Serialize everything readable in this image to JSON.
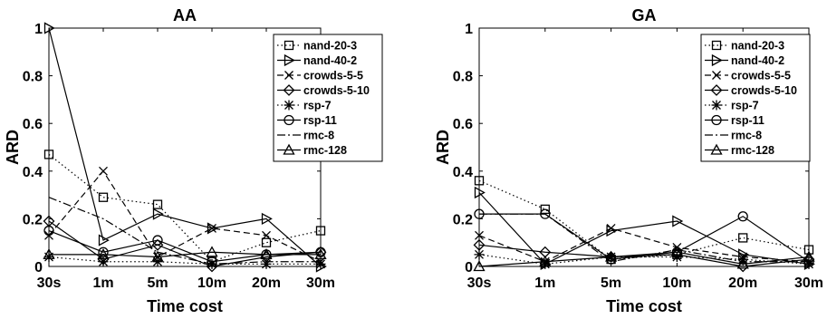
{
  "chart_data": [
    {
      "type": "line",
      "title": "AA",
      "xlabel": "Time cost",
      "ylabel": "ARD",
      "categories": [
        "30s",
        "1m",
        "5m",
        "10m",
        "20m",
        "30m"
      ],
      "ylim": [
        0,
        1
      ],
      "yticks": [
        "0",
        "0.2",
        "0.4",
        "0.6",
        "0.8",
        "1"
      ],
      "legend_position": "top-right",
      "series": [
        {
          "name": "nand-20-3",
          "values": [
            0.47,
            0.29,
            0.26,
            0.02,
            0.1,
            0.15
          ],
          "dash": "dotted",
          "marker": "square"
        },
        {
          "name": "nand-40-2",
          "values": [
            1.0,
            0.11,
            0.22,
            0.16,
            0.2,
            0.0
          ],
          "dash": "solid",
          "marker": "triangle-right"
        },
        {
          "name": "crowds-5-5",
          "values": [
            0.13,
            0.4,
            0.04,
            0.16,
            0.13,
            0.02
          ],
          "dash": "dashed",
          "marker": "x"
        },
        {
          "name": "crowds-5-10",
          "values": [
            0.19,
            0.03,
            0.09,
            0.0,
            0.04,
            0.06
          ],
          "dash": "solid",
          "marker": "diamond"
        },
        {
          "name": "rsp-7",
          "values": [
            0.04,
            0.02,
            0.02,
            0.01,
            0.01,
            0.01
          ],
          "dash": "dotted",
          "marker": "asterisk"
        },
        {
          "name": "rsp-11",
          "values": [
            0.15,
            0.06,
            0.11,
            0.02,
            0.05,
            0.06
          ],
          "dash": "solid",
          "marker": "circle"
        },
        {
          "name": "rmc-8",
          "values": [
            0.29,
            0.2,
            0.06,
            0.01,
            0.02,
            0.02
          ],
          "dash": "dashdot",
          "marker": "none"
        },
        {
          "name": "rmc-128",
          "values": [
            0.05,
            0.05,
            0.04,
            0.06,
            0.05,
            0.05
          ],
          "dash": "solid",
          "marker": "triangle-up"
        }
      ]
    },
    {
      "type": "line",
      "title": "GA",
      "xlabel": "Time cost",
      "ylabel": "ARD",
      "categories": [
        "30s",
        "1m",
        "5m",
        "10m",
        "20m",
        "30m"
      ],
      "ylim": [
        0,
        1
      ],
      "yticks": [
        "0",
        "0.2",
        "0.4",
        "0.6",
        "0.8",
        "1"
      ],
      "legend_position": "top-right",
      "series": [
        {
          "name": "nand-20-3",
          "values": [
            0.36,
            0.24,
            0.03,
            0.05,
            0.12,
            0.07
          ],
          "dash": "dotted",
          "marker": "square"
        },
        {
          "name": "nand-40-2",
          "values": [
            0.31,
            0.01,
            0.15,
            0.19,
            0.05,
            0.01
          ],
          "dash": "solid",
          "marker": "triangle-right"
        },
        {
          "name": "crowds-5-5",
          "values": [
            0.13,
            0.02,
            0.16,
            0.08,
            0.04,
            0.02
          ],
          "dash": "dashed",
          "marker": "x"
        },
        {
          "name": "crowds-5-10",
          "values": [
            0.09,
            0.06,
            0.04,
            0.05,
            0.0,
            0.03
          ],
          "dash": "solid",
          "marker": "diamond"
        },
        {
          "name": "rsp-7",
          "values": [
            0.05,
            0.01,
            0.04,
            0.04,
            0.03,
            0.01
          ],
          "dash": "dotted",
          "marker": "asterisk"
        },
        {
          "name": "rsp-11",
          "values": [
            0.22,
            0.22,
            0.03,
            0.06,
            0.21,
            0.02
          ],
          "dash": "solid",
          "marker": "circle"
        },
        {
          "name": "rmc-8",
          "values": [
            0.22,
            0.22,
            0.02,
            0.07,
            0.02,
            0.02
          ],
          "dash": "dashdot",
          "marker": "none"
        },
        {
          "name": "rmc-128",
          "values": [
            0.0,
            0.02,
            0.04,
            0.06,
            0.01,
            0.04
          ],
          "dash": "solid",
          "marker": "triangle-up"
        }
      ]
    }
  ]
}
